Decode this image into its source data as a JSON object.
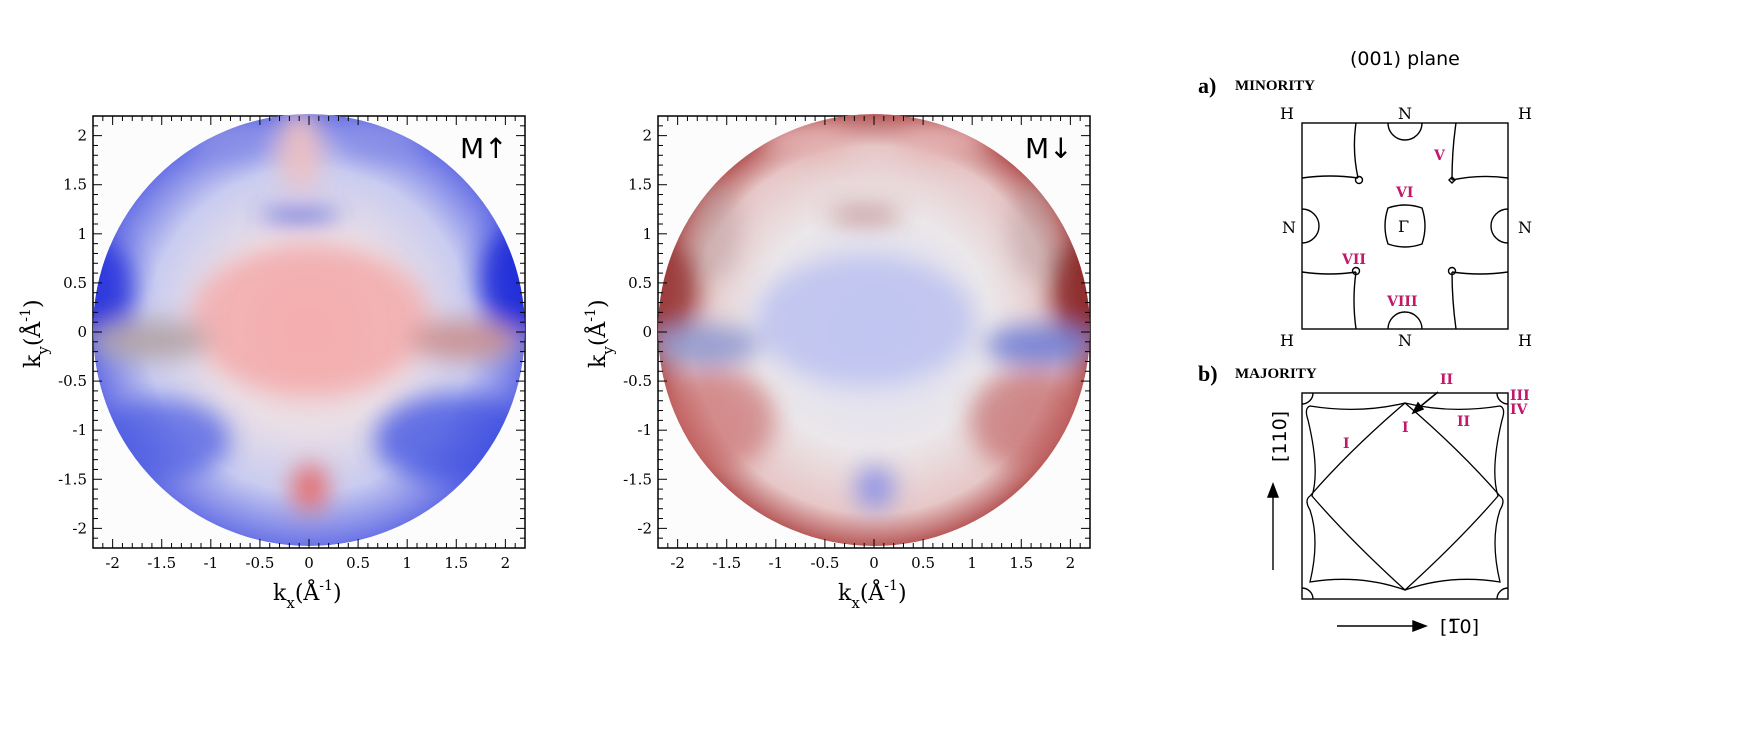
{
  "panels": [
    {
      "label": "M↑",
      "xlabel_main": "k",
      "xlabel_sub": "x",
      "xlabel_unit": "(Å",
      "xlabel_exp": "-1",
      "xlabel_close": ")",
      "ylabel_main": "k",
      "ylabel_sub": "y",
      "ylabel_unit": "(Å",
      "ylabel_exp": "-1",
      "ylabel_close": ")",
      "colors": {
        "edge": "#1a2fd6",
        "center": "#f07a7a"
      }
    },
    {
      "label": "M↓",
      "xlabel_main": "k",
      "xlabel_sub": "x",
      "xlabel_unit": "(Å",
      "xlabel_exp": "-1",
      "xlabel_close": ")",
      "ylabel_main": "k",
      "ylabel_sub": "y",
      "ylabel_unit": "(Å",
      "ylabel_exp": "-1",
      "ylabel_close": ")",
      "colors": {
        "edge": "#a82020",
        "center": "#8a94e6"
      }
    }
  ],
  "axes": {
    "xticks": [
      "-2",
      "-1.5",
      "-1",
      "-0.5",
      "0",
      "0.5",
      "1",
      "1.5",
      "2"
    ],
    "yticks": [
      "2",
      "1.5",
      "1",
      "0.5",
      "0",
      "-0.5",
      "-1",
      "-1.5",
      "-2"
    ],
    "range": [
      -2.2,
      2.2
    ]
  },
  "schematic": {
    "title": "(001) plane",
    "a_letter": "a)",
    "a_title": "MINORITY",
    "b_letter": "b)",
    "b_title": "MAJORITY",
    "corner_H": "H",
    "edge_N": "N",
    "gamma": "Γ",
    "minority_labels": {
      "v": "V",
      "vi": "VI",
      "vii": "VII",
      "viii": "VIII"
    },
    "majority_labels": {
      "i": "I",
      "ii": "II",
      "iii": "III",
      "iv": "IV"
    },
    "axis_vertical": "[110]",
    "axis_horizontal": "[1̅0]",
    "label_color": "#c0186a"
  }
}
